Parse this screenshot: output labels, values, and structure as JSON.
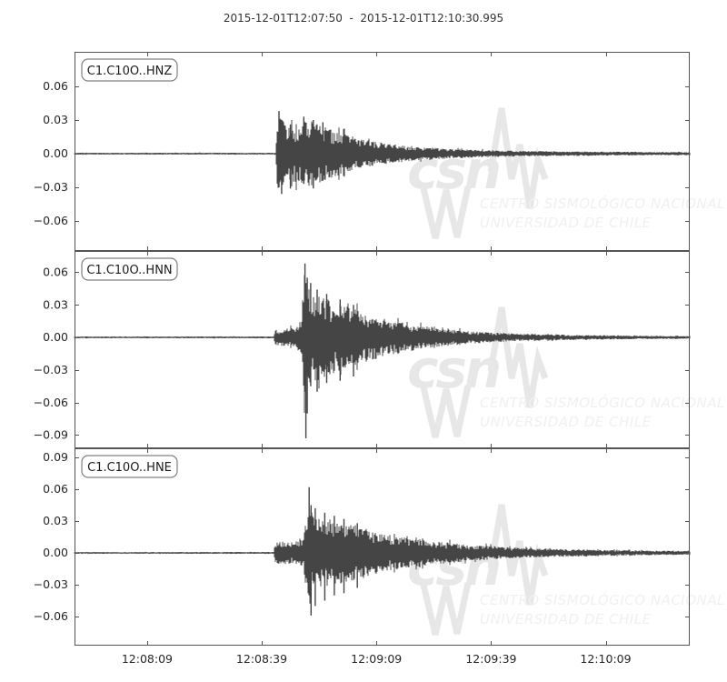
{
  "title": "2015-12-01T12:07:50  -  2015-12-01T12:10:30.995",
  "colors": {
    "background": "#ffffff",
    "axis": "#555555",
    "trace": "#454545",
    "tick_text": "#262626",
    "title_text": "#333333",
    "station_text": "#1a1a1a",
    "station_box_border": "#808080",
    "watermark_glyph": "#e7e7e7",
    "watermark_text": "#f0f0f0"
  },
  "watermark": {
    "acronym": "csn",
    "line1": "CENTRO SISMOLÓGICO NACIONAL",
    "line2": "UNIVERSIDAD DE CHILE"
  },
  "xaxis": {
    "start": "2015-12-01T12:07:50",
    "end": "2015-12-01T12:10:30.995",
    "duration_s": 160.995,
    "tick_labels": [
      "12:08:09",
      "12:08:39",
      "12:09:09",
      "12:09:39",
      "12:10:09"
    ],
    "tick_times_s": [
      19,
      49,
      79,
      109,
      139
    ]
  },
  "chart_data": [
    {
      "type": "line",
      "id": "HNZ",
      "label": "C1.C10O..HNZ",
      "ylim": [
        -0.0868,
        0.0908
      ],
      "ytick_values": [
        0.06,
        0.03,
        0.0,
        -0.03,
        -0.06
      ],
      "ytick_labels": [
        "0.06",
        "0.03",
        "0.00",
        "−0.03",
        "−0.06"
      ],
      "onset_s": 53,
      "peak_amplitude": 0.038,
      "min_amplitude": -0.036,
      "envelope": [
        [
          0,
          0.0008
        ],
        [
          52.8,
          0.0009
        ],
        [
          53.2,
          0.034
        ],
        [
          55,
          0.03
        ],
        [
          58,
          0.026
        ],
        [
          61,
          0.03
        ],
        [
          64,
          0.027
        ],
        [
          67,
          0.022
        ],
        [
          70,
          0.019
        ],
        [
          74,
          0.014
        ],
        [
          78,
          0.011
        ],
        [
          82,
          0.009
        ],
        [
          86,
          0.0075
        ],
        [
          90,
          0.006
        ],
        [
          95,
          0.005
        ],
        [
          100,
          0.004
        ],
        [
          106,
          0.0033
        ],
        [
          112,
          0.0028
        ],
        [
          120,
          0.0023
        ],
        [
          130,
          0.002
        ],
        [
          140,
          0.0017
        ],
        [
          150,
          0.0015
        ],
        [
          161,
          0.0014
        ]
      ],
      "spikes": [
        [
          53.5,
          0.038,
          0.03
        ],
        [
          54.2,
          0.03,
          0.036
        ],
        [
          56.5,
          0.026,
          0.031
        ],
        [
          60,
          0.033,
          0.027
        ],
        [
          62.5,
          0.03,
          0.031
        ],
        [
          65,
          0.028,
          0.024
        ]
      ]
    },
    {
      "type": "line",
      "id": "HNN",
      "label": "C1.C10O..HNN",
      "ylim": [
        -0.1022,
        0.0796
      ],
      "ytick_values": [
        0.06,
        0.03,
        0.0,
        -0.03,
        -0.06,
        -0.09
      ],
      "ytick_labels": [
        "0.06",
        "0.03",
        "0.00",
        "−0.03",
        "−0.06",
        "−0.09"
      ],
      "onset_s": 52,
      "peak_amplitude": 0.068,
      "min_amplitude": -0.093,
      "envelope": [
        [
          0,
          0.0008
        ],
        [
          52.2,
          0.0009
        ],
        [
          52.6,
          0.007
        ],
        [
          55,
          0.008
        ],
        [
          58,
          0.009
        ],
        [
          59.6,
          0.018
        ],
        [
          60.2,
          0.075
        ],
        [
          60.8,
          0.05
        ],
        [
          62,
          0.042
        ],
        [
          64,
          0.04
        ],
        [
          66,
          0.036
        ],
        [
          69,
          0.032
        ],
        [
          72,
          0.028
        ],
        [
          75,
          0.024
        ],
        [
          79,
          0.02
        ],
        [
          83,
          0.016
        ],
        [
          87,
          0.013
        ],
        [
          91,
          0.011
        ],
        [
          95,
          0.009
        ],
        [
          100,
          0.007
        ],
        [
          105,
          0.0055
        ],
        [
          110,
          0.0045
        ],
        [
          116,
          0.0036
        ],
        [
          122,
          0.003
        ],
        [
          130,
          0.0024
        ],
        [
          140,
          0.0019
        ],
        [
          150,
          0.0015
        ],
        [
          161,
          0.0013
        ]
      ],
      "spikes": [
        [
          60.3,
          0.068,
          0.05
        ],
        [
          60.55,
          0.05,
          0.093
        ],
        [
          60.9,
          0.055,
          0.07
        ],
        [
          61.8,
          0.05,
          0.045
        ],
        [
          63.5,
          0.044,
          0.05
        ],
        [
          66,
          0.04,
          0.042
        ],
        [
          69.5,
          0.035,
          0.04
        ],
        [
          73,
          0.03,
          0.036
        ]
      ]
    },
    {
      "type": "line",
      "id": "HNE",
      "label": "C1.C10O..HNE",
      "ylim": [
        -0.0874,
        0.0986
      ],
      "ytick_values": [
        0.09,
        0.06,
        0.03,
        0.0,
        -0.03,
        -0.06
      ],
      "ytick_labels": [
        "0.09",
        "0.06",
        "0.03",
        "0.00",
        "−0.03",
        "−0.06"
      ],
      "onset_s": 52,
      "peak_amplitude": 0.062,
      "min_amplitude": -0.059,
      "envelope": [
        [
          0,
          0.0008
        ],
        [
          52.2,
          0.0009
        ],
        [
          52.6,
          0.009
        ],
        [
          54,
          0.012
        ],
        [
          56,
          0.011
        ],
        [
          58,
          0.009
        ],
        [
          59.8,
          0.013
        ],
        [
          61,
          0.03
        ],
        [
          61.5,
          0.05
        ],
        [
          62.5,
          0.04
        ],
        [
          64,
          0.036
        ],
        [
          66,
          0.033
        ],
        [
          68,
          0.03
        ],
        [
          71,
          0.028
        ],
        [
          74,
          0.026
        ],
        [
          77,
          0.022
        ],
        [
          80,
          0.019
        ],
        [
          84,
          0.016
        ],
        [
          88,
          0.014
        ],
        [
          92,
          0.012
        ],
        [
          96,
          0.0105
        ],
        [
          100,
          0.009
        ],
        [
          105,
          0.0075
        ],
        [
          110,
          0.0062
        ],
        [
          115,
          0.0052
        ],
        [
          120,
          0.0045
        ],
        [
          126,
          0.0038
        ],
        [
          132,
          0.0032
        ],
        [
          140,
          0.0027
        ],
        [
          148,
          0.0023
        ],
        [
          155,
          0.002
        ],
        [
          161,
          0.0019
        ]
      ],
      "spikes": [
        [
          61.4,
          0.062,
          0.04
        ],
        [
          61.9,
          0.045,
          0.059
        ],
        [
          63,
          0.042,
          0.05
        ],
        [
          65.5,
          0.038,
          0.045
        ],
        [
          68,
          0.035,
          0.04
        ],
        [
          70.5,
          0.032,
          0.038
        ],
        [
          74,
          0.028,
          0.033
        ]
      ]
    }
  ]
}
